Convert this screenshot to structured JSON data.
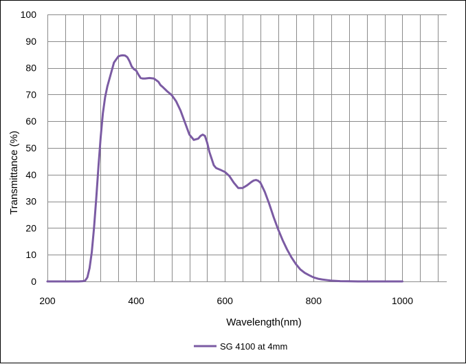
{
  "chart_data": {
    "type": "line",
    "xlabel": "Wavelength(nm)",
    "ylabel": "Transmittance (%)",
    "xlim": [
      200,
      1100
    ],
    "ylim": [
      0,
      100
    ],
    "x_ticks": [
      200,
      400,
      600,
      800,
      1000
    ],
    "y_ticks": [
      0,
      10,
      20,
      30,
      40,
      50,
      60,
      70,
      80,
      90,
      100
    ],
    "x_grid_step": 40,
    "grid": true,
    "legend_position": "bottom",
    "series": [
      {
        "name": "SG 4100 at 4mm",
        "color": "#7b5ba3",
        "x": [
          200,
          240,
          270,
          280,
          285,
          290,
          295,
          300,
          305,
          310,
          315,
          320,
          325,
          330,
          335,
          340,
          345,
          350,
          360,
          365,
          370,
          375,
          380,
          385,
          390,
          395,
          400,
          405,
          410,
          415,
          420,
          430,
          440,
          450,
          455,
          460,
          470,
          480,
          490,
          500,
          510,
          520,
          530,
          540,
          545,
          550,
          555,
          560,
          565,
          570,
          575,
          580,
          590,
          600,
          610,
          620,
          630,
          640,
          650,
          660,
          665,
          670,
          675,
          680,
          690,
          700,
          710,
          720,
          730,
          740,
          750,
          760,
          770,
          780,
          790,
          800,
          810,
          820,
          830,
          840,
          850,
          860,
          880,
          900,
          950,
          1000
        ],
        "y": [
          0,
          0,
          0,
          0.1,
          0.3,
          1.5,
          5,
          11,
          20,
          31,
          43,
          54,
          63,
          69,
          73,
          76,
          79,
          82,
          84.3,
          84.6,
          84.7,
          84.6,
          84,
          82.5,
          80.5,
          79.5,
          79,
          77.5,
          76.2,
          76,
          76,
          76.2,
          76,
          74.8,
          73.5,
          72.8,
          71.2,
          69.8,
          67.5,
          64,
          59.5,
          55,
          53,
          53.5,
          54.5,
          55,
          54.5,
          52,
          48.5,
          46,
          43.5,
          42.5,
          41.8,
          41,
          39.5,
          37,
          35,
          35,
          36,
          37.3,
          37.8,
          38,
          37.7,
          37,
          33.5,
          29,
          24,
          19.5,
          15.5,
          12,
          9,
          6.5,
          4.5,
          3.2,
          2.3,
          1.5,
          1,
          0.7,
          0.5,
          0.3,
          0.2,
          0.1,
          0.05,
          0,
          0,
          0
        ]
      }
    ]
  }
}
